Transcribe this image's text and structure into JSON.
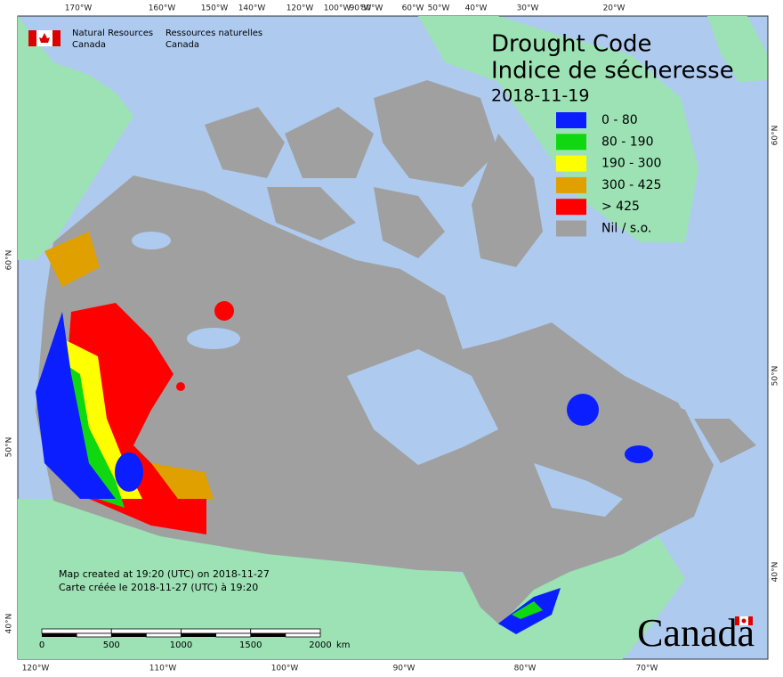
{
  "header": {
    "org_en": [
      "Natural Resources",
      "Canada"
    ],
    "org_fr": [
      "Ressources naturelles",
      "Canada"
    ]
  },
  "title": [
    "Drought Code",
    "Indice de sécheresse"
  ],
  "date": "2018-11-19",
  "legend": [
    {
      "label": "0 - 80",
      "color": "#0a1eff"
    },
    {
      "label": "80 - 190",
      "color": "#10d810"
    },
    {
      "label": "190 - 300",
      "color": "#ffff00"
    },
    {
      "label": "300 - 425",
      "color": "#e0a000"
    },
    {
      "label": "> 425",
      "color": "#ff0000"
    },
    {
      "label": "Nil / s.o.",
      "color": "#a0a0a0"
    }
  ],
  "credits": [
    "Map created at 19:20 (UTC) on 2018-11-27",
    "Carte créée le 2018-11-27 (UTC) à 19:20"
  ],
  "scale_bar": {
    "ticks": [
      0,
      500,
      1000,
      1500,
      2000
    ],
    "unit": "km"
  },
  "graticule": {
    "top": [
      "170°W",
      "160°W",
      "150°W",
      "140°W",
      "120°W",
      "100°W",
      "90°W",
      "80°W",
      "60°W",
      "50°W",
      "40°W",
      "30°W",
      "20°W"
    ],
    "bottom": [
      "120°W",
      "110°W",
      "100°W",
      "90°W",
      "80°W",
      "70°W"
    ],
    "left": [
      "60°N",
      "50°N",
      "40°N"
    ],
    "right": [
      "60°N",
      "50°N",
      "40°N"
    ]
  },
  "wordmark": "Canada"
}
